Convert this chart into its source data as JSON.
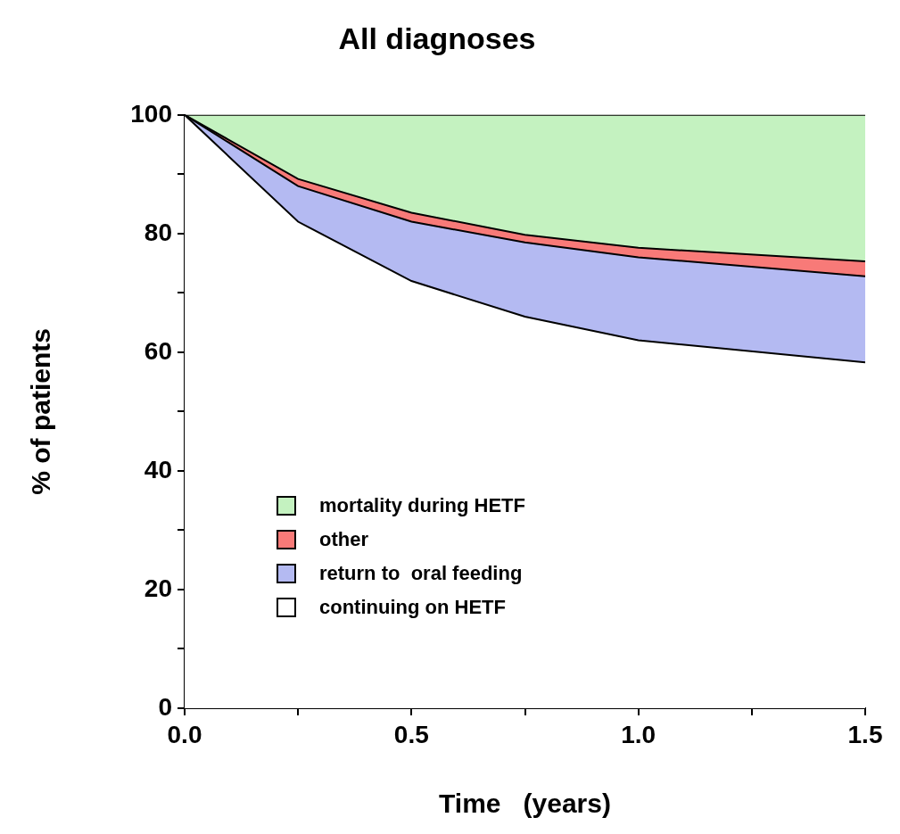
{
  "chart_data": {
    "type": "area",
    "title": "All diagnoses",
    "xlabel": "Time   (years)",
    "ylabel": "% of patients",
    "stacked": true,
    "legend": "bottom left",
    "x": [
      0,
      0.25,
      0.5,
      0.75,
      1.0,
      1.5
    ],
    "xlim": [
      0,
      1.5
    ],
    "xticks": [
      {
        "value": 0,
        "label": "0.0"
      },
      {
        "value": 0.25,
        "label": null
      },
      {
        "value": 0.5,
        "label": "0.5"
      },
      {
        "value": 0.75,
        "label": null
      },
      {
        "value": 1.0,
        "label": "1.0"
      },
      {
        "value": 1.25,
        "label": null
      },
      {
        "value": 1.5,
        "label": "1.5"
      }
    ],
    "ylim": [
      0,
      100
    ],
    "yticks": [
      0,
      {
        "value": 10,
        "label": null
      },
      20,
      {
        "value": 30,
        "label": null
      },
      40,
      {
        "value": 50,
        "label": null
      },
      60,
      {
        "value": 70,
        "label": null
      },
      80,
      {
        "value": 90,
        "label": null
      },
      100
    ],
    "series": [
      {
        "name": "continuing on HETF",
        "color": "#ffffff",
        "values": [
          100,
          82,
          72,
          66,
          62,
          58.3
        ]
      },
      {
        "name": "return to  oral feeding",
        "color": "#b4baf2",
        "values": [
          0,
          6,
          10,
          12.5,
          14,
          14.5
        ]
      },
      {
        "name": "other",
        "color": "#f87a78",
        "values": [
          0,
          1.2,
          1.5,
          1.3,
          1.6,
          2.5
        ]
      },
      {
        "name": "mortality during HETF",
        "color": "#c4f2c0",
        "values": [
          0,
          10.8,
          16.5,
          20.2,
          22.4,
          24.7
        ]
      }
    ]
  }
}
